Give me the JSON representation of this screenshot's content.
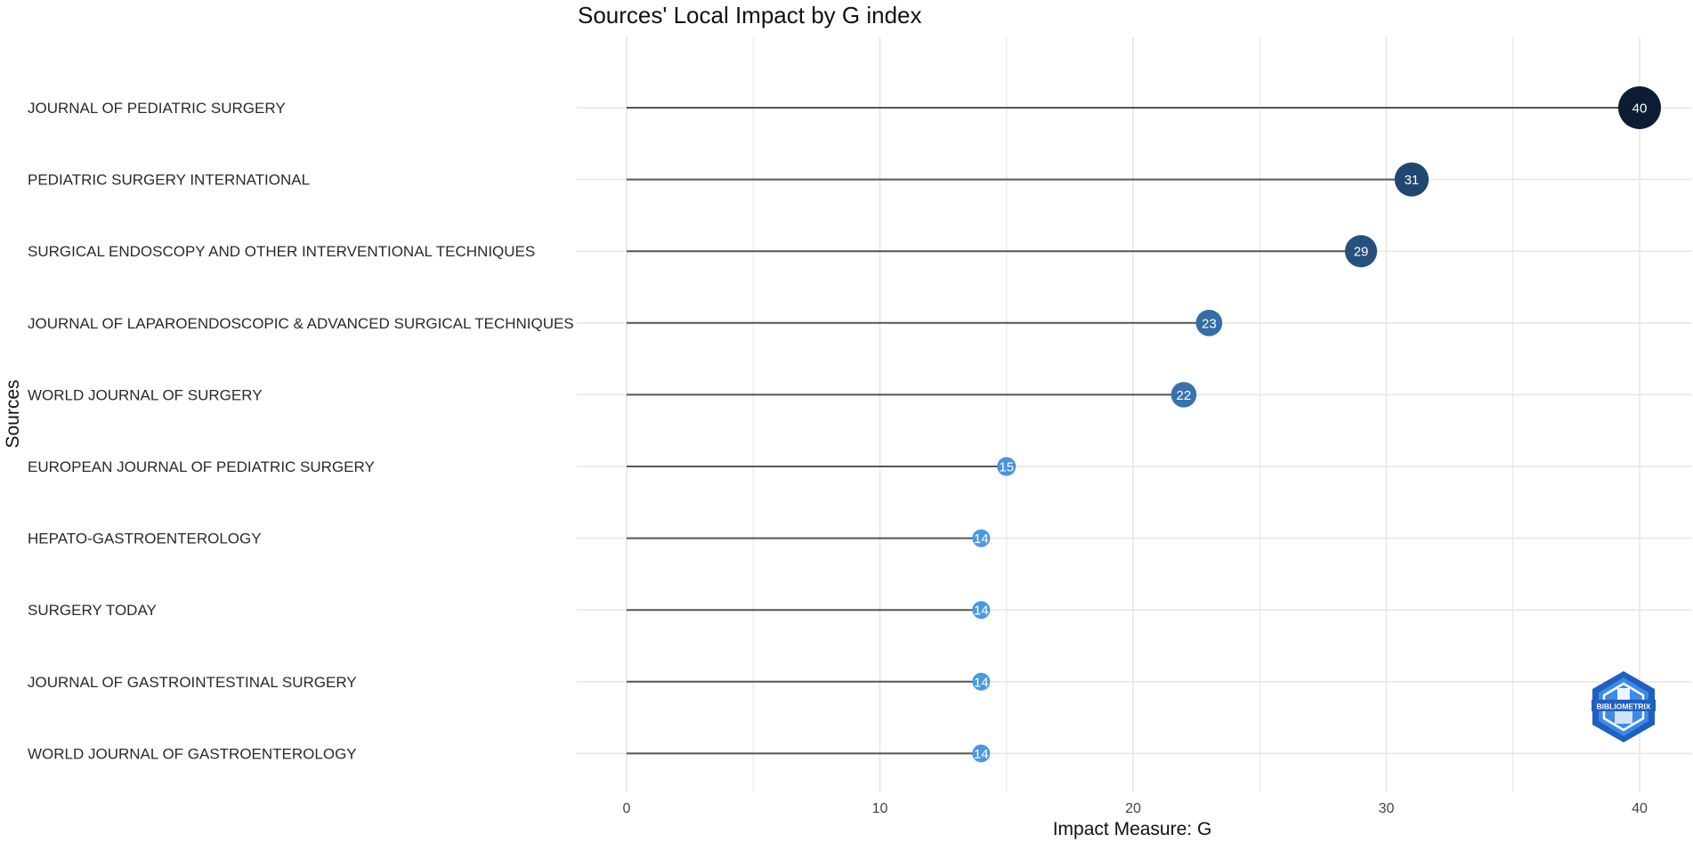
{
  "chart_data": {
    "type": "lollipop",
    "title": "Sources' Local Impact by G index",
    "xlabel": "Impact Measure: G",
    "ylabel": "Sources",
    "xlim": [
      0,
      40
    ],
    "x_ticks": [
      0,
      10,
      20,
      30,
      40
    ],
    "grid": true,
    "categories": [
      "JOURNAL OF PEDIATRIC SURGERY",
      "PEDIATRIC SURGERY INTERNATIONAL",
      "SURGICAL ENDOSCOPY AND OTHER INTERVENTIONAL TECHNIQUES",
      "JOURNAL OF LAPAROENDOSCOPIC & ADVANCED SURGICAL TECHNIQUES",
      "WORLD JOURNAL OF SURGERY",
      "EUROPEAN JOURNAL OF PEDIATRIC SURGERY",
      "HEPATO-GASTROENTEROLOGY",
      "SURGERY TODAY",
      "JOURNAL OF GASTROINTESTINAL SURGERY",
      "WORLD JOURNAL OF GASTROENTEROLOGY"
    ],
    "values": [
      40,
      31,
      29,
      23,
      22,
      15,
      14,
      14,
      14,
      14
    ],
    "data_labels": [
      "40",
      "31",
      "29",
      "23",
      "22",
      "15",
      "14",
      "14",
      "14",
      "14"
    ],
    "color_scale": {
      "low": "#4a98e3",
      "high": "#0c1c33"
    },
    "stem_color": "#555555",
    "grid_color": "#e6e6e6"
  },
  "watermark": {
    "text": "BIBLIOMETRIX",
    "icon": "bibliometrix-logo-icon",
    "colors": [
      "#1f5fbf",
      "#3d8ae6",
      "#ffffff"
    ]
  }
}
